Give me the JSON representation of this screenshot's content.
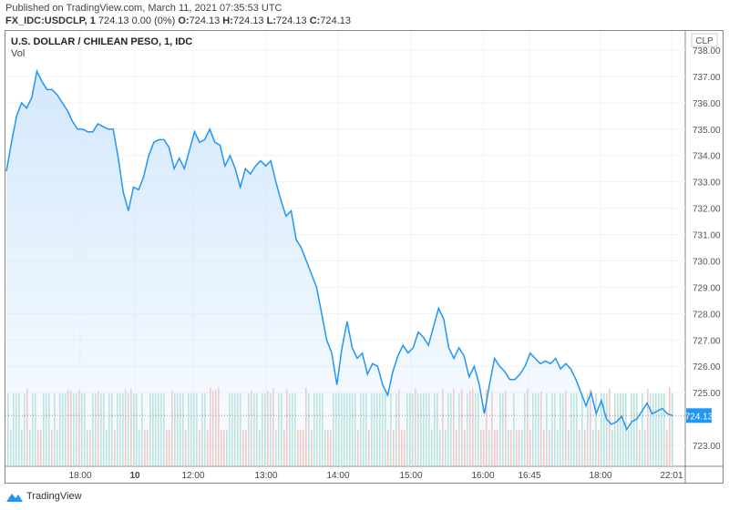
{
  "header": {
    "published": "Published on TradingView.com, March 11, 2021 07:35:53 UTC",
    "symbol": "FX_IDC:USDCLP, 1",
    "ohlc_summary": "724.13 0.00 (0%)",
    "o_label": "O:",
    "o": "724.13",
    "h_label": "H:",
    "h": "724.13",
    "l_label": "L:",
    "l": "724.13",
    "c_label": "C:",
    "c": "724.13"
  },
  "chart_data": {
    "type": "area",
    "title": "U.S. DOLLAR / CHILEAN PESO, 1, IDC",
    "indicator": "Vol",
    "currency": "CLP",
    "last_price": "724.13",
    "ylim": [
      722.5,
      738.7
    ],
    "yticks": [
      "738.00",
      "737.00",
      "736.00",
      "735.00",
      "734.00",
      "733.00",
      "732.00",
      "731.00",
      "730.00",
      "729.00",
      "728.00",
      "727.00",
      "726.00",
      "725.00",
      "723.00"
    ],
    "xticks": [
      "18:00",
      "10",
      "12:00",
      "13:00",
      "14:00",
      "15:00",
      "16:00",
      "16:45",
      "18:00",
      "22:01"
    ],
    "values": [
      733.4,
      734.5,
      735.5,
      736,
      735.8,
      736.2,
      737.2,
      736.8,
      736.5,
      736.5,
      736.3,
      736,
      735.7,
      735.3,
      735,
      735,
      734.9,
      734.9,
      735.2,
      735.1,
      735,
      735,
      733.9,
      732.6,
      731.9,
      732.8,
      732.7,
      733.2,
      734,
      734.5,
      734.6,
      734.6,
      734.3,
      733.5,
      733.9,
      733.5,
      734.2,
      734.9,
      734.5,
      734.6,
      735,
      734.5,
      734.4,
      733.6,
      734,
      733.5,
      732.8,
      733.5,
      733.3,
      733.6,
      733.8,
      733.6,
      733.8,
      733,
      732.3,
      731.7,
      731.9,
      730.8,
      730.5,
      730,
      729.5,
      729,
      728,
      727,
      726.5,
      725.3,
      726.7,
      727.7,
      726.7,
      726.3,
      726.5,
      725.7,
      726.1,
      726,
      725.3,
      724.9,
      725.8,
      726.4,
      726.8,
      726.5,
      726.7,
      727.3,
      727.1,
      726.8,
      727.5,
      728.2,
      727.8,
      726.7,
      726.3,
      726.7,
      726.4,
      725.6,
      726,
      725.3,
      724.2,
      725.3,
      726.3,
      726,
      725.8,
      725.5,
      725.5,
      725.7,
      726,
      726.5,
      726.3,
      726.1,
      726.2,
      726.1,
      726.3,
      725.9,
      726.1,
      725.9,
      725.5,
      725,
      724.5,
      725,
      724.2,
      724.7,
      724,
      723.8,
      723.9,
      724.1,
      723.6,
      723.9,
      724,
      724.3,
      724.6,
      724.2,
      724.3,
      724.4,
      724.2,
      724.13
    ],
    "colors": {
      "line": "#2196f3",
      "area": "#cfe6fb",
      "vol_up": "#a8dccf",
      "vol_down": "#f5b5b1",
      "label_bg": "#2196f3"
    },
    "grid": true
  },
  "footer": {
    "brand": "TradingView"
  }
}
